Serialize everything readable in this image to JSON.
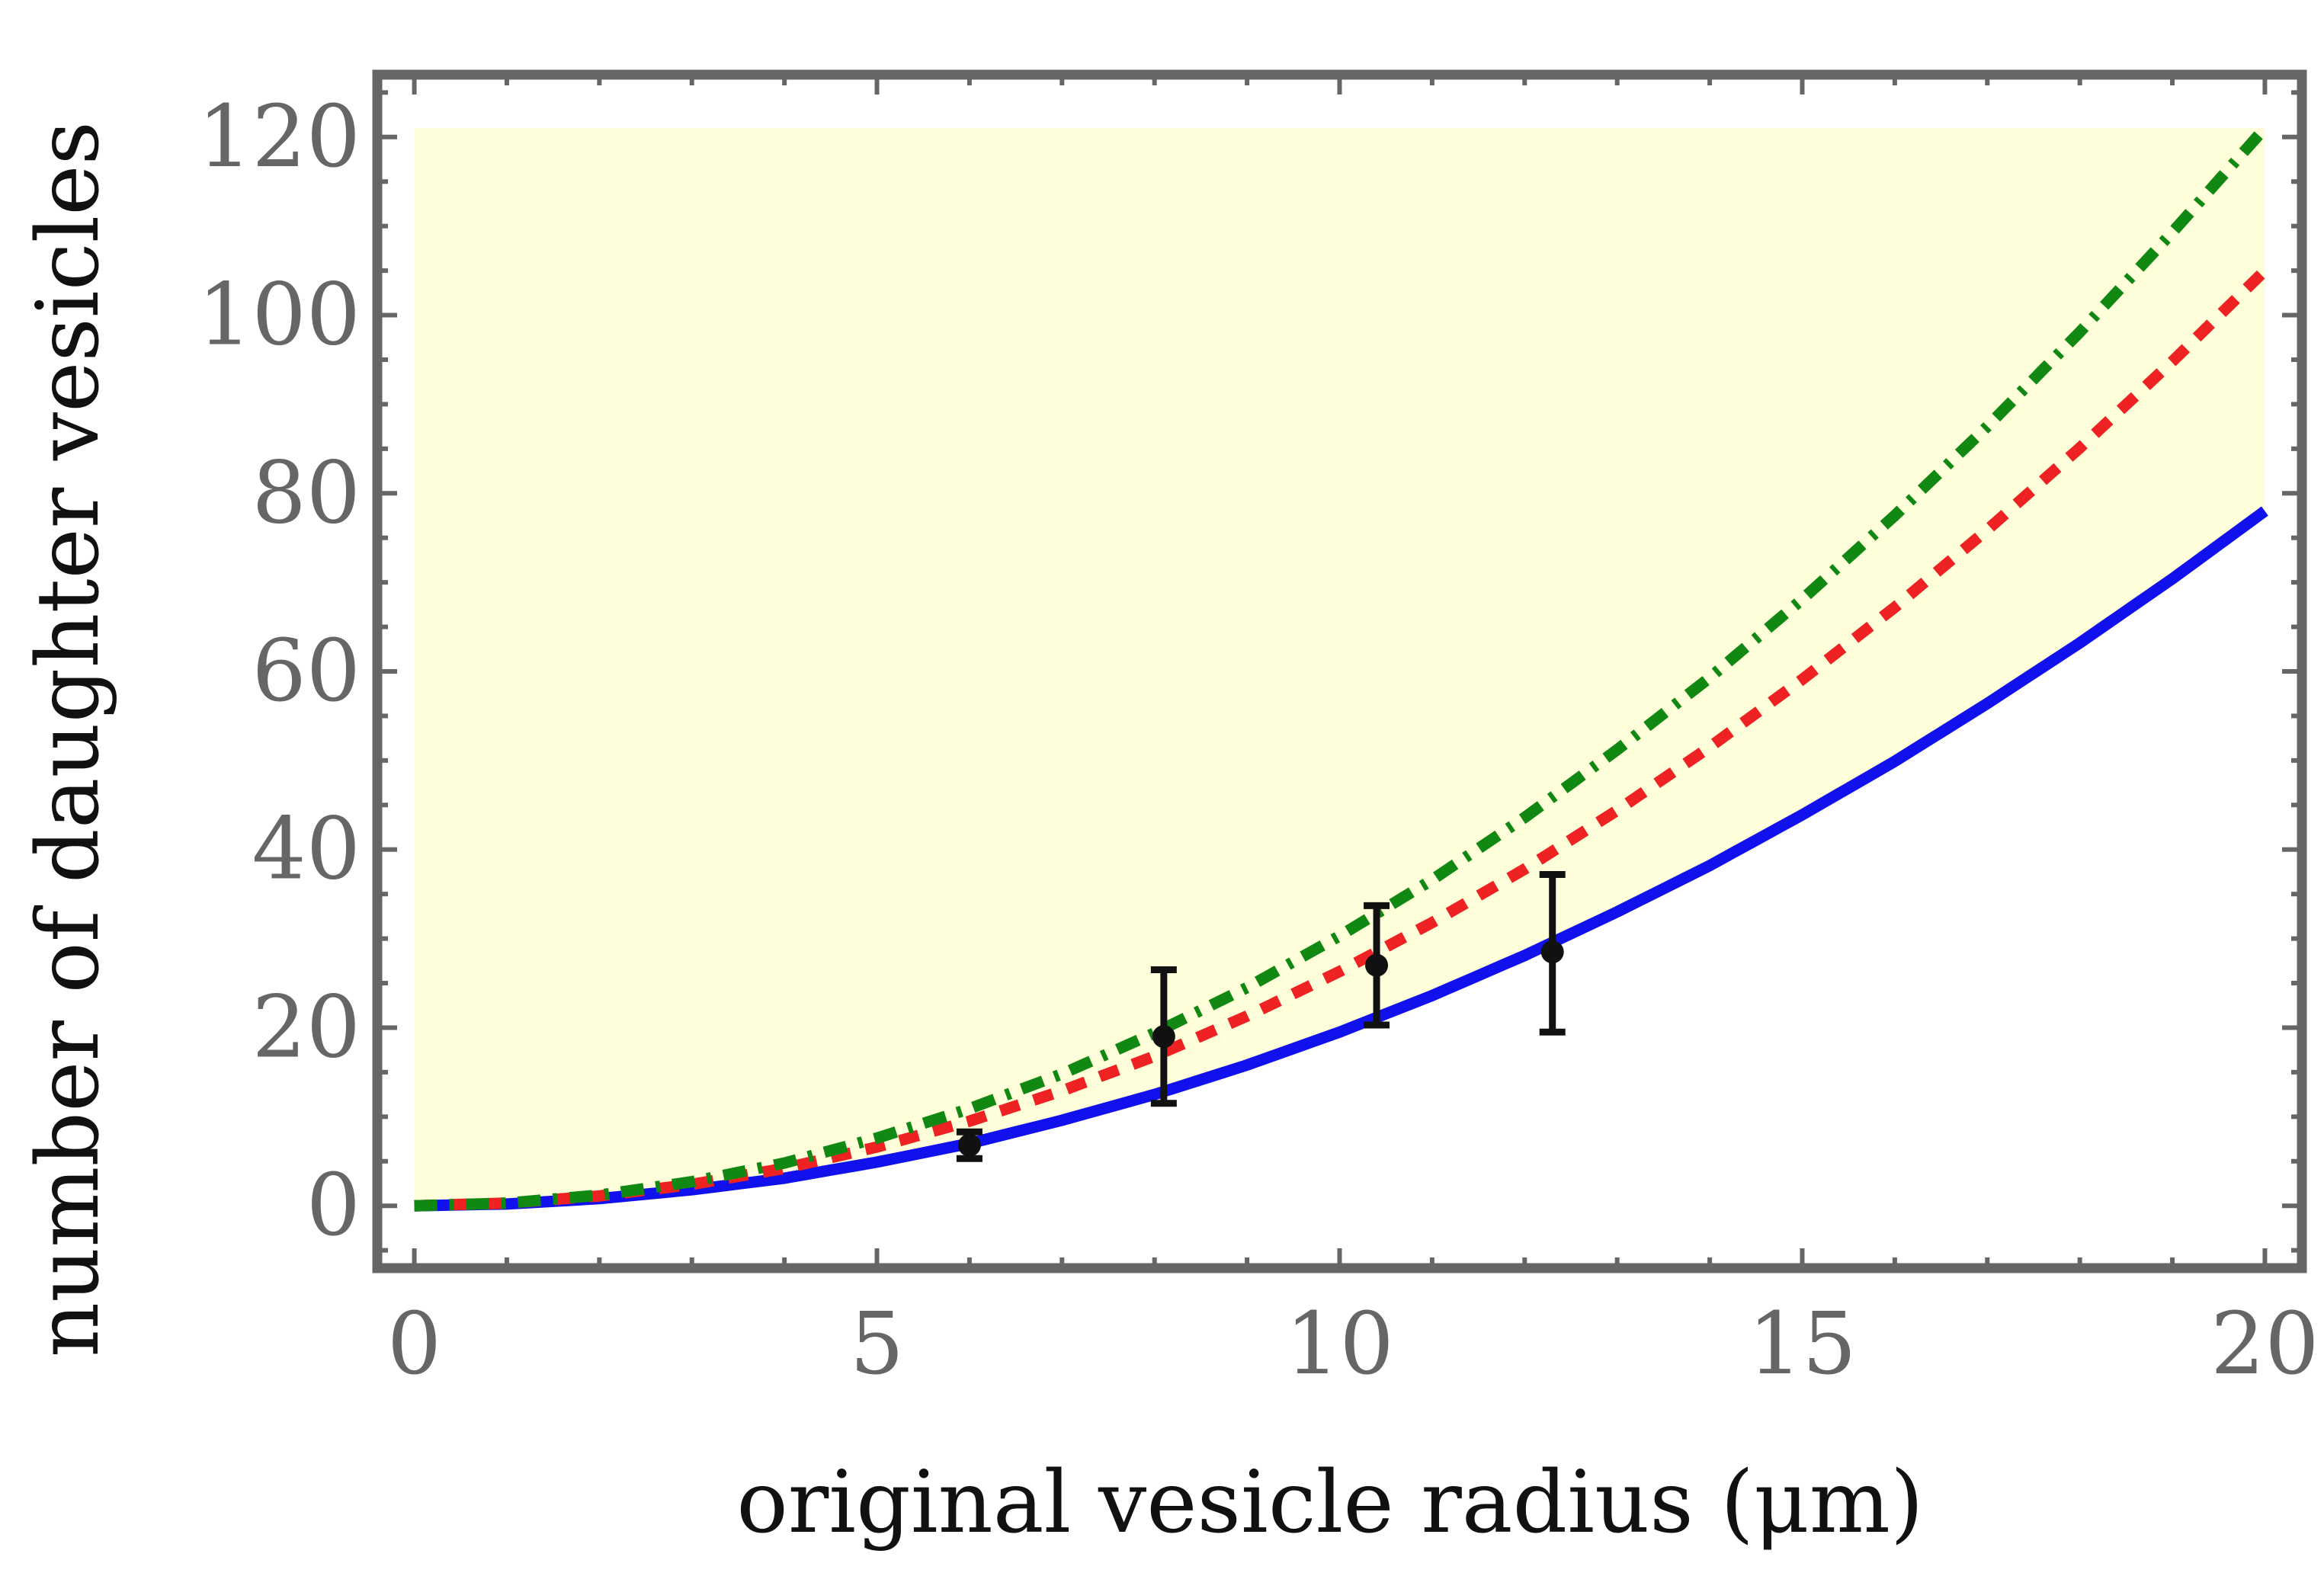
{
  "chart_data": {
    "type": "line",
    "xlabel": "original vesicle radius (μm)",
    "ylabel": "number of daughter vesicles",
    "xlim": [
      -0.4,
      20.4
    ],
    "ylim": [
      -7,
      127
    ],
    "x_ticks": [
      0,
      5,
      10,
      15,
      20
    ],
    "y_ticks": [
      0,
      20,
      40,
      60,
      80,
      100,
      120
    ],
    "frame": true,
    "grid": false,
    "shaded_region": {
      "description": "region above the solid curve, up to y = 121",
      "x_range": [
        0,
        20
      ],
      "y_top": 121,
      "color": "#FEFEDA"
    },
    "series": [
      {
        "name": "dash-dot curve",
        "style": "dashdot",
        "color": "#118811",
        "x": [
          0,
          1,
          2,
          3,
          4,
          5,
          6,
          7,
          8,
          9,
          10,
          11,
          12,
          13,
          14,
          15,
          16,
          17,
          18,
          19,
          20
        ],
        "values": [
          0,
          0.3,
          1.2,
          2.7,
          4.8,
          7.6,
          10.9,
          14.8,
          19.4,
          24.5,
          30.3,
          36.6,
          43.6,
          51.2,
          59.3,
          68.1,
          77.5,
          87.5,
          98.1,
          109.3,
          121.0
        ]
      },
      {
        "name": "dashed curve",
        "style": "dashed",
        "color": "#EE2222",
        "x": [
          0,
          1,
          2,
          3,
          4,
          5,
          6,
          7,
          8,
          9,
          10,
          11,
          12,
          13,
          14,
          15,
          16,
          17,
          18,
          19,
          20
        ],
        "values": [
          0,
          0.3,
          1.1,
          2.4,
          4.2,
          6.6,
          9.5,
          12.9,
          16.8,
          21.3,
          26.3,
          31.8,
          37.8,
          44.4,
          51.5,
          59.1,
          67.2,
          75.9,
          85.1,
          94.8,
          105.0
        ]
      },
      {
        "name": "solid curve",
        "style": "solid",
        "color": "#1111EE",
        "x": [
          0,
          1,
          2,
          3,
          4,
          5,
          6,
          7,
          8,
          9,
          10,
          11,
          12,
          13,
          14,
          15,
          16,
          17,
          18,
          19,
          20
        ],
        "values": [
          0,
          0.2,
          0.8,
          1.8,
          3.1,
          4.9,
          7.0,
          9.6,
          12.5,
          15.8,
          19.5,
          23.6,
          28.1,
          33.0,
          38.2,
          43.9,
          49.9,
          56.4,
          63.2,
          70.4,
          78.0
        ]
      }
    ],
    "data_points": [
      {
        "x": 6.0,
        "y": 6.8,
        "err_low": 5.3,
        "err_high": 8.3
      },
      {
        "x": 8.1,
        "y": 19.0,
        "err_low": 11.5,
        "err_high": 26.5
      },
      {
        "x": 10.4,
        "y": 27.0,
        "err_low": 20.3,
        "err_high": 33.7
      },
      {
        "x": 12.3,
        "y": 28.5,
        "err_low": 19.5,
        "err_high": 37.2
      }
    ]
  }
}
